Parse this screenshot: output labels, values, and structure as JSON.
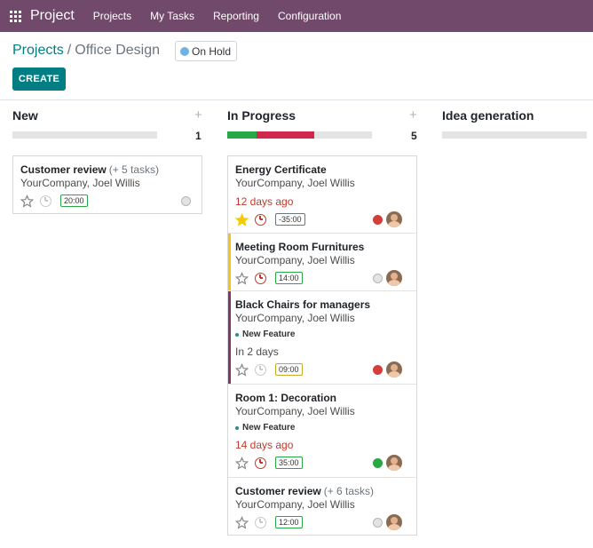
{
  "navbar": {
    "brand": "Project",
    "items": [
      "Projects",
      "My Tasks",
      "Reporting",
      "Configuration"
    ]
  },
  "breadcrumb": {
    "parent": "Projects",
    "separator": "/",
    "current": "Office Design"
  },
  "status": {
    "label": "On Hold",
    "color": "#6eb2e4"
  },
  "create_label": "CREATE",
  "colors": {
    "navbar": "#71496a",
    "primary": "#017e84",
    "danger": "#d23f3a",
    "success": "#28a745",
    "warning": "#f0c419",
    "purple": "#7c3a6b"
  },
  "columns": [
    {
      "title": "New",
      "count": "1",
      "progress": {
        "green": 0,
        "red": 0,
        "grey": 1
      }
    },
    {
      "title": "In Progress",
      "count": "5",
      "progress": {
        "green": 0.2,
        "red": 0.4,
        "grey": 0.4
      }
    },
    {
      "title": "Idea generation",
      "count": "",
      "progress": {
        "green": 0,
        "red": 0,
        "grey": 1
      }
    }
  ],
  "new_cards": [
    {
      "title": "Customer review",
      "subtasks": "(+ 5 tasks)",
      "sub": "YourCompany, Joel Willis",
      "time": "20:00",
      "state": "grey"
    }
  ],
  "progress_cards": [
    {
      "title": "Energy Certificate",
      "sub": "YourCompany, Joel Willis",
      "date": "12 days ago",
      "date_style": "red",
      "starred": true,
      "clock": "red",
      "time": "-35:00",
      "time_style": "neg",
      "state": "red",
      "bar": ""
    },
    {
      "title": "Meeting Room Furnitures",
      "sub": "YourCompany, Joel Willis",
      "date": "",
      "starred": false,
      "clock": "red",
      "time": "14:00",
      "time_style": "ok",
      "state": "grey",
      "bar": "warning"
    },
    {
      "title": "Black Chairs for managers",
      "sub": "YourCompany, Joel Willis",
      "tag": "New Feature",
      "date": "In 2 days",
      "date_style": "normal",
      "starred": false,
      "clock": "grey",
      "time": "09:00",
      "time_style": "warn",
      "state": "red",
      "bar": "purple"
    },
    {
      "title": "Room 1: Decoration",
      "sub": "YourCompany, Joel Willis",
      "tag": "New Feature",
      "date": "14 days ago",
      "date_style": "red",
      "starred": false,
      "clock": "red",
      "time": "35:00",
      "time_style": "ok",
      "state": "green",
      "bar": ""
    },
    {
      "title": "Customer review",
      "subtasks": "(+ 6 tasks)",
      "sub": "YourCompany, Joel Willis",
      "date": "",
      "starred": false,
      "clock": "grey",
      "time": "12:00",
      "time_style": "ok",
      "state": "grey",
      "bar": ""
    }
  ]
}
